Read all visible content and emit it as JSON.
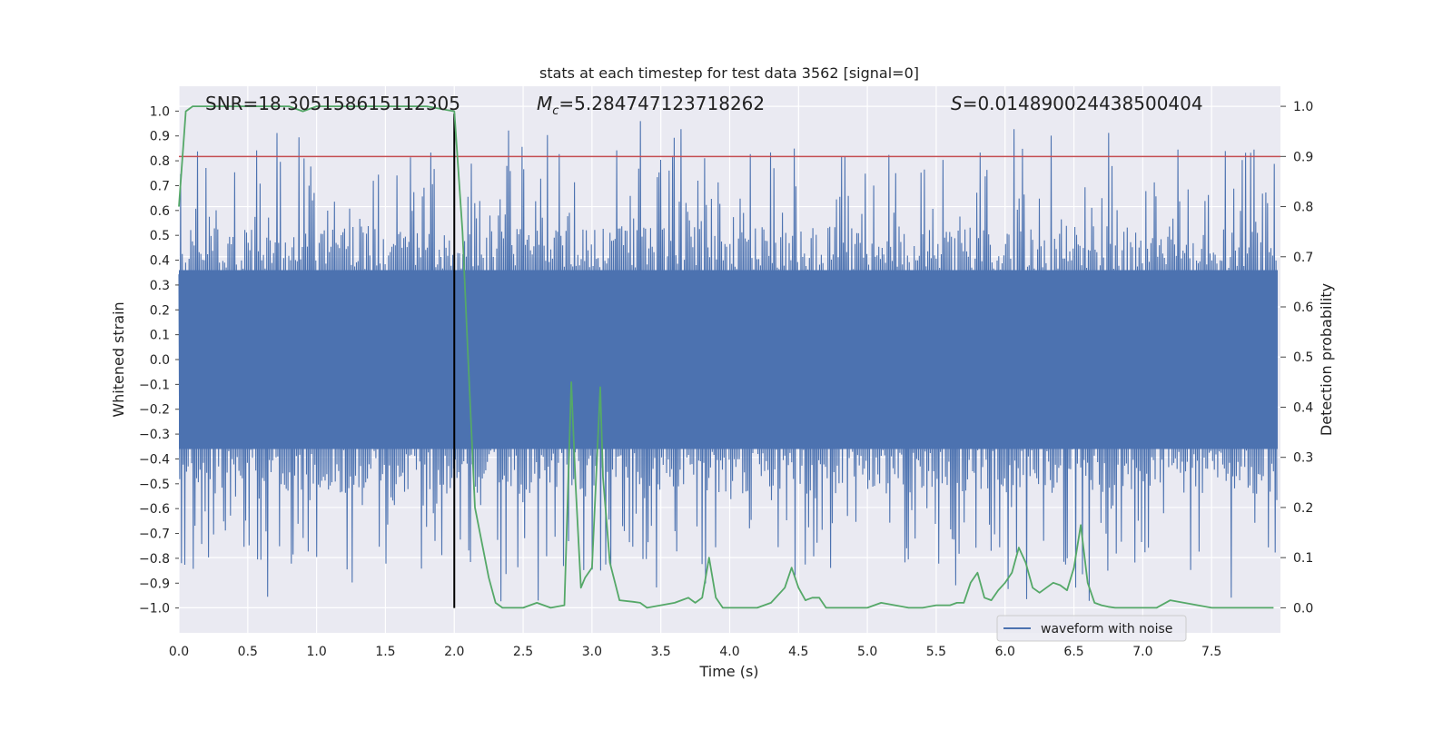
{
  "chart_data": {
    "type": "line",
    "title": "stats at each timestep for test data 3562 [signal=0]",
    "xlabel": "Time (s)",
    "ylabel": "Whitened strain",
    "ylabel_right": "Detection probability",
    "xlim": [
      0.0,
      8.0
    ],
    "ylim": [
      -1.1,
      1.1
    ],
    "ylim_right": [
      -0.05,
      1.04
    ],
    "x_ticks": [
      "0.0",
      "0.5",
      "1.0",
      "1.5",
      "2.0",
      "2.5",
      "3.0",
      "3.5",
      "4.0",
      "4.5",
      "5.0",
      "5.5",
      "6.0",
      "6.5",
      "7.0",
      "7.5"
    ],
    "y_ticks": [
      "1.0",
      "0.9",
      "0.8",
      "0.7",
      "0.6",
      "0.5",
      "0.4",
      "0.3",
      "0.2",
      "0.1",
      "0.0",
      "−0.1",
      "−0.2",
      "−0.3",
      "−0.4",
      "−0.5",
      "−0.6",
      "−0.7",
      "−0.8",
      "−0.9",
      "−1.0"
    ],
    "y_right_ticks": [
      "0.0",
      "0.1",
      "0.2",
      "0.3",
      "0.4",
      "0.5",
      "0.6",
      "0.7",
      "0.8",
      "0.9",
      "1.0"
    ],
    "grid": true,
    "legend": {
      "placement": "lower-right",
      "entries": [
        "waveform with noise"
      ]
    },
    "annotations": {
      "snr": "SNR=18.305158615112305",
      "mc_symbol": "M",
      "mc_sub": "c",
      "mc_value": "=5.284747123718262",
      "s_symbol": "S",
      "s_value": "=0.014890024438500404"
    },
    "threshold": {
      "axis": "right",
      "y": 0.9
    },
    "vertical_marker": {
      "x": 2.0,
      "y_range": [
        -1.0,
        0.99
      ]
    },
    "waveform": {
      "name": "waveform with noise",
      "envelope_typical": 0.45,
      "envelope_peak": 0.98,
      "color": "#4c72b0"
    },
    "series": [
      {
        "name": "detection probability",
        "axis": "right",
        "color": "#55a868",
        "x": [
          0.0,
          0.05,
          0.1,
          0.2,
          0.4,
          0.6,
          0.8,
          0.9,
          0.95,
          1.0,
          1.2,
          1.4,
          1.6,
          1.8,
          1.9,
          2.0,
          2.06,
          2.1,
          2.15,
          2.2,
          2.25,
          2.3,
          2.35,
          2.4,
          2.45,
          2.5,
          2.55,
          2.6,
          2.65,
          2.7,
          2.8,
          2.85,
          2.88,
          2.92,
          2.95,
          3.0,
          3.06,
          3.08,
          3.13,
          3.2,
          3.3,
          3.35,
          3.4,
          3.5,
          3.6,
          3.65,
          3.7,
          3.75,
          3.8,
          3.85,
          3.9,
          3.95,
          4.0,
          4.1,
          4.2,
          4.3,
          4.4,
          4.45,
          4.5,
          4.55,
          4.6,
          4.65,
          4.7,
          4.75,
          4.8,
          4.85,
          4.9,
          5.0,
          5.1,
          5.2,
          5.3,
          5.4,
          5.5,
          5.6,
          5.65,
          5.7,
          5.75,
          5.8,
          5.85,
          5.9,
          5.95,
          6.0,
          6.05,
          6.1,
          6.15,
          6.2,
          6.25,
          6.3,
          6.35,
          6.4,
          6.45,
          6.5,
          6.55,
          6.6,
          6.65,
          6.7,
          6.75,
          6.8,
          6.85,
          6.9,
          7.0,
          7.1,
          7.2,
          7.3,
          7.4,
          7.5,
          7.6,
          7.7,
          7.8,
          7.95
        ],
        "y": [
          0.8,
          0.99,
          1.0,
          1.0,
          1.0,
          1.0,
          1.0,
          0.99,
          0.995,
          1.0,
          1.0,
          1.0,
          1.0,
          1.0,
          0.995,
          0.99,
          0.75,
          0.5,
          0.2,
          0.13,
          0.06,
          0.01,
          0.0,
          0.0,
          0.0,
          0.0,
          0.005,
          0.01,
          0.005,
          0.0,
          0.005,
          0.45,
          0.25,
          0.04,
          0.06,
          0.08,
          0.44,
          0.26,
          0.09,
          0.015,
          0.012,
          0.01,
          0.0,
          0.005,
          0.01,
          0.015,
          0.02,
          0.01,
          0.02,
          0.1,
          0.02,
          0.0,
          0.0,
          0.0,
          0.0,
          0.01,
          0.04,
          0.08,
          0.04,
          0.015,
          0.02,
          0.02,
          0.0,
          0.0,
          0.0,
          0.0,
          0.0,
          0.0,
          0.01,
          0.005,
          0.0,
          0.0,
          0.005,
          0.005,
          0.01,
          0.01,
          0.05,
          0.07,
          0.02,
          0.015,
          0.035,
          0.05,
          0.07,
          0.12,
          0.09,
          0.04,
          0.03,
          0.04,
          0.05,
          0.045,
          0.035,
          0.08,
          0.165,
          0.05,
          0.01,
          0.005,
          0.002,
          0.0,
          0.0,
          0.0,
          0.0,
          0.0,
          0.015,
          0.01,
          0.005,
          0.0,
          0.0,
          0.0,
          0.0,
          0.0
        ]
      }
    ]
  }
}
